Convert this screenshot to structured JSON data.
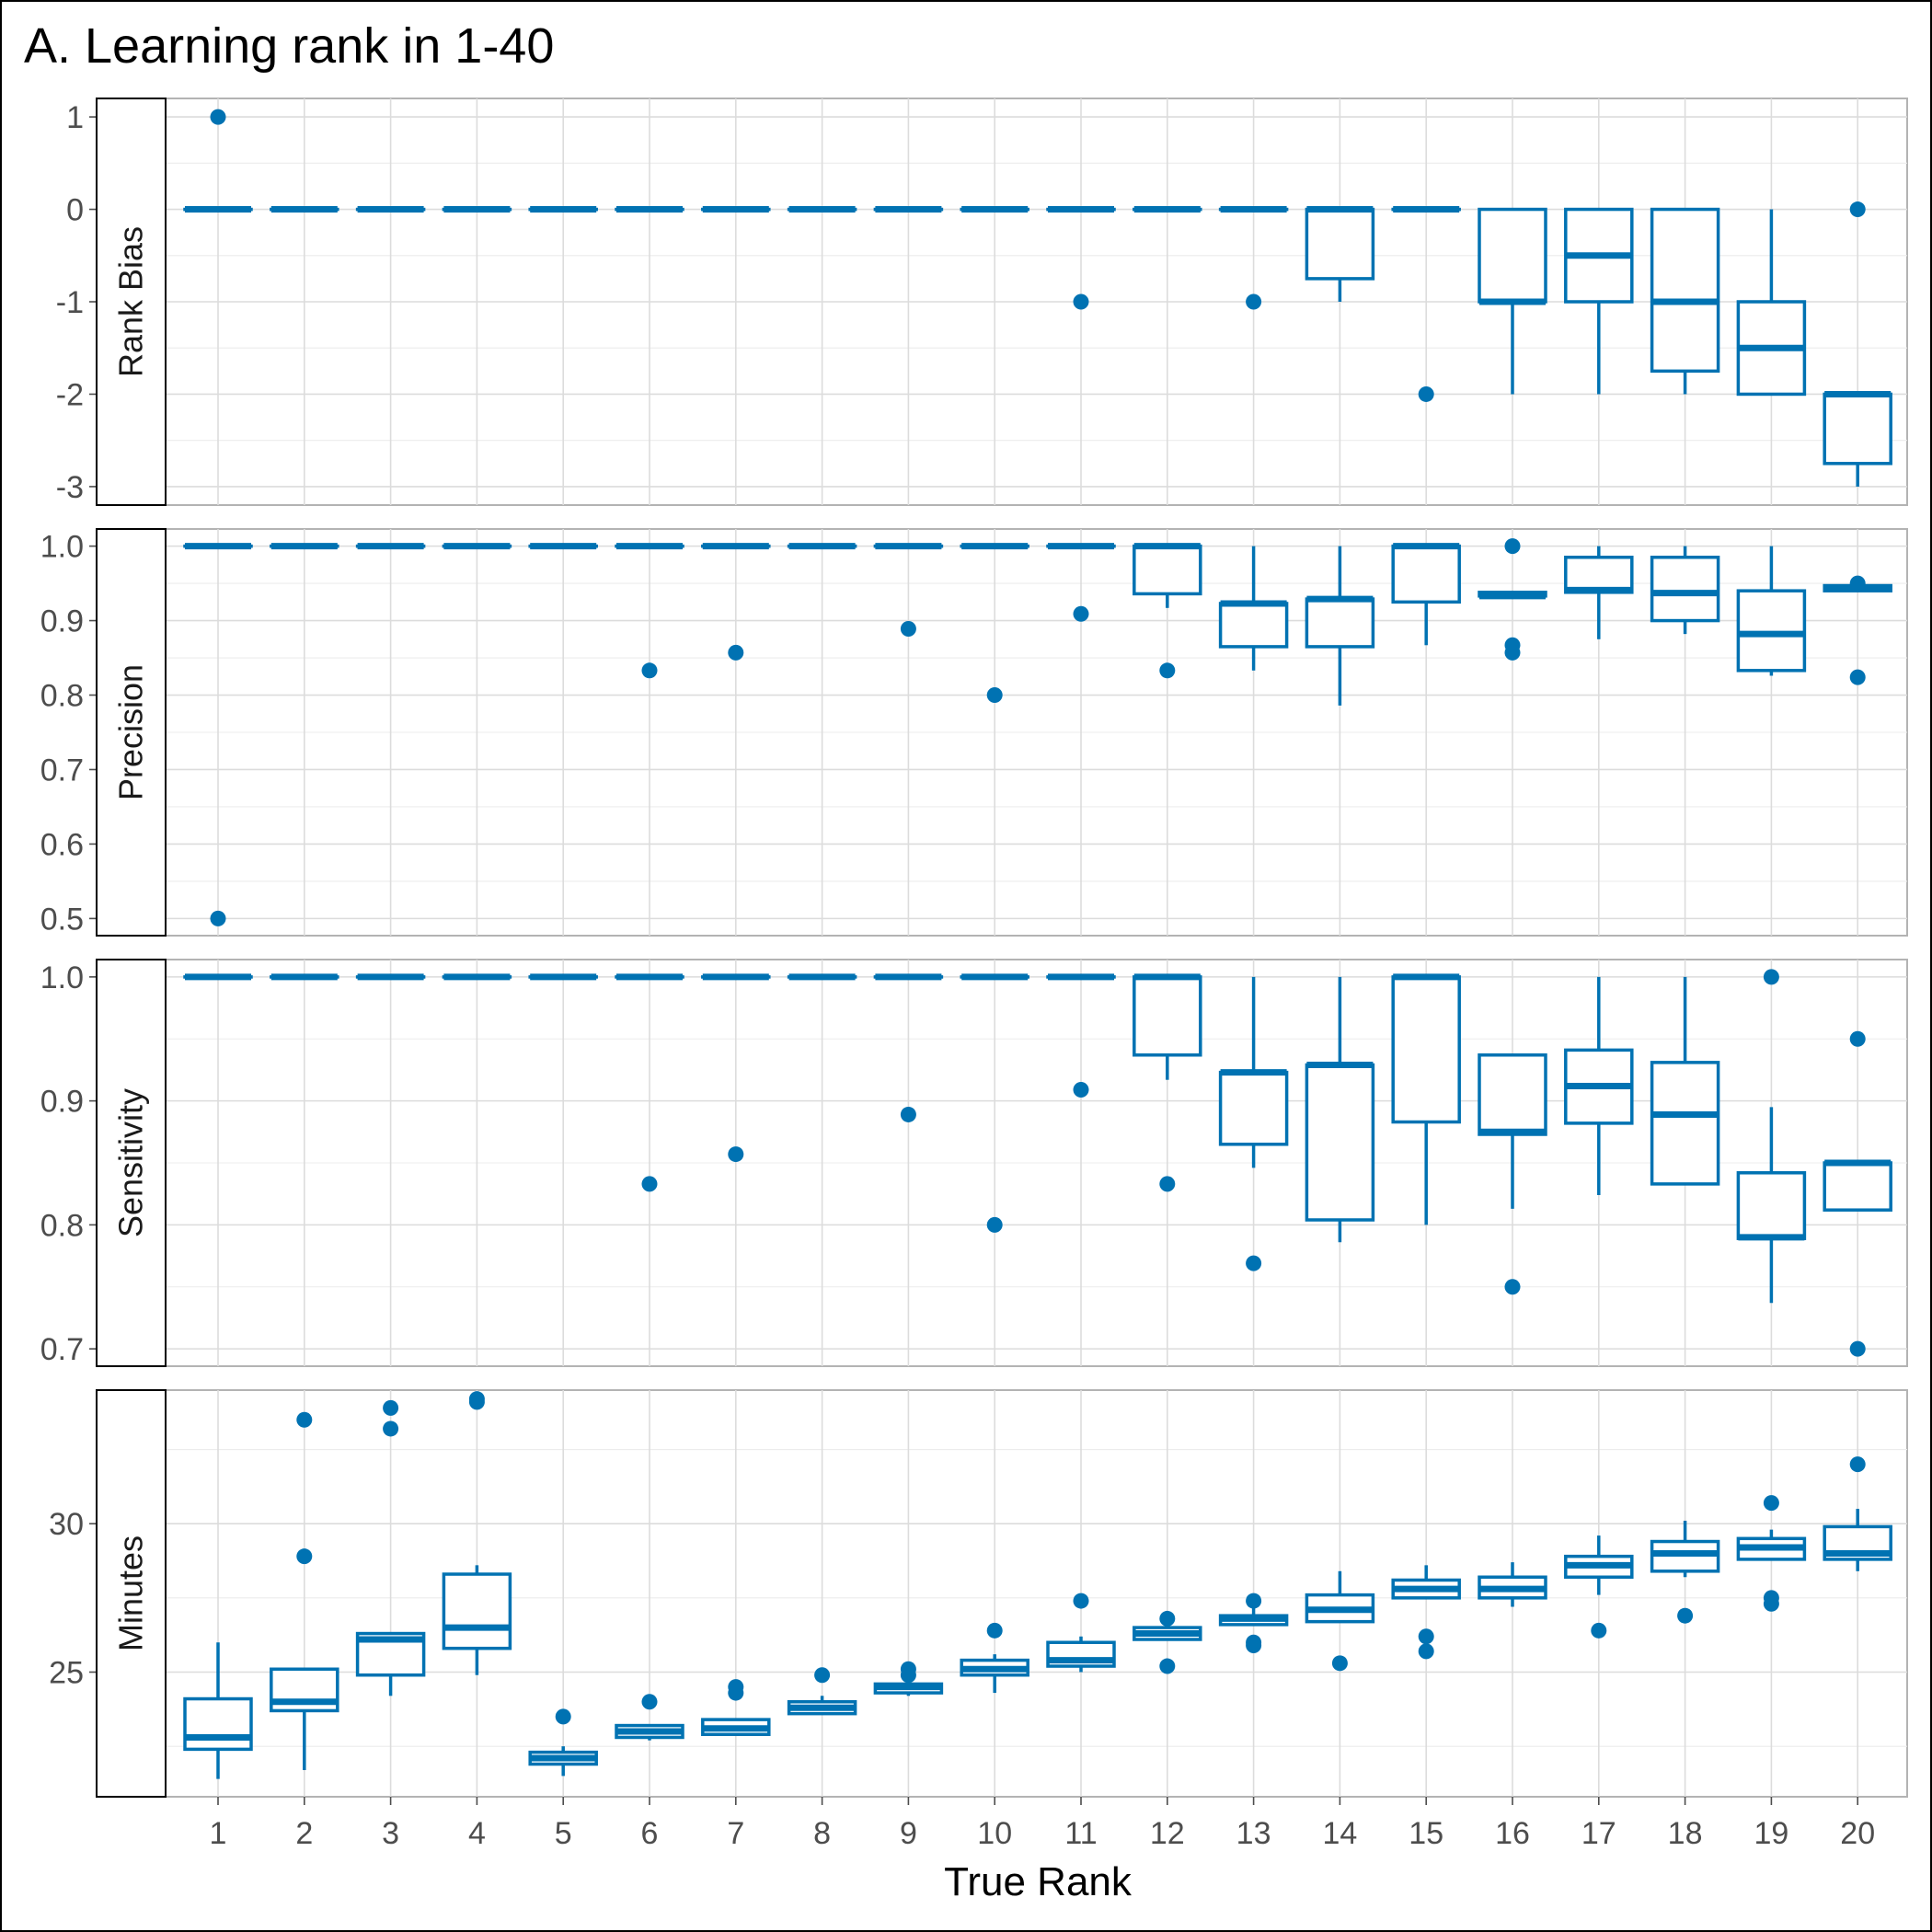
{
  "chart_data": {
    "type": "boxplot",
    "title": "A. Learning rank in 1-40",
    "xlabel": "True Rank",
    "categories": [
      "1",
      "2",
      "3",
      "4",
      "5",
      "6",
      "7",
      "8",
      "9",
      "10",
      "11",
      "12",
      "13",
      "14",
      "15",
      "16",
      "17",
      "18",
      "19",
      "20"
    ],
    "color": "#0072B2",
    "grid": true,
    "panels": [
      {
        "name": "Rank Bias",
        "ylim": [
          -3.2,
          1.2
        ],
        "yticks": [
          1,
          0,
          -1,
          -2,
          -3
        ],
        "yticklabels": [
          "1",
          "0",
          "-1",
          "-2",
          "-3"
        ],
        "boxes": [
          {
            "x": "1",
            "q1": 0,
            "median": 0,
            "q3": 0,
            "lower": 0,
            "upper": 0,
            "outliers": [
              1
            ]
          },
          {
            "x": "2",
            "q1": 0,
            "median": 0,
            "q3": 0,
            "lower": 0,
            "upper": 0,
            "outliers": []
          },
          {
            "x": "3",
            "q1": 0,
            "median": 0,
            "q3": 0,
            "lower": 0,
            "upper": 0,
            "outliers": []
          },
          {
            "x": "4",
            "q1": 0,
            "median": 0,
            "q3": 0,
            "lower": 0,
            "upper": 0,
            "outliers": []
          },
          {
            "x": "5",
            "q1": 0,
            "median": 0,
            "q3": 0,
            "lower": 0,
            "upper": 0,
            "outliers": []
          },
          {
            "x": "6",
            "q1": 0,
            "median": 0,
            "q3": 0,
            "lower": 0,
            "upper": 0,
            "outliers": []
          },
          {
            "x": "7",
            "q1": 0,
            "median": 0,
            "q3": 0,
            "lower": 0,
            "upper": 0,
            "outliers": []
          },
          {
            "x": "8",
            "q1": 0,
            "median": 0,
            "q3": 0,
            "lower": 0,
            "upper": 0,
            "outliers": []
          },
          {
            "x": "9",
            "q1": 0,
            "median": 0,
            "q3": 0,
            "lower": 0,
            "upper": 0,
            "outliers": []
          },
          {
            "x": "10",
            "q1": 0,
            "median": 0,
            "q3": 0,
            "lower": 0,
            "upper": 0,
            "outliers": []
          },
          {
            "x": "11",
            "q1": 0,
            "median": 0,
            "q3": 0,
            "lower": 0,
            "upper": 0,
            "outliers": [
              -1
            ]
          },
          {
            "x": "12",
            "q1": 0,
            "median": 0,
            "q3": 0,
            "lower": 0,
            "upper": 0,
            "outliers": []
          },
          {
            "x": "13",
            "q1": 0,
            "median": 0,
            "q3": 0,
            "lower": 0,
            "upper": 0,
            "outliers": [
              -1
            ]
          },
          {
            "x": "14",
            "q1": -0.75,
            "median": 0,
            "q3": 0,
            "lower": -1,
            "upper": 0,
            "outliers": []
          },
          {
            "x": "15",
            "q1": 0,
            "median": 0,
            "q3": 0,
            "lower": 0,
            "upper": 0,
            "outliers": [
              -2
            ]
          },
          {
            "x": "16",
            "q1": -1,
            "median": -1,
            "q3": 0,
            "lower": -2,
            "upper": 0,
            "outliers": []
          },
          {
            "x": "17",
            "q1": -1,
            "median": -0.5,
            "q3": 0,
            "lower": -2,
            "upper": 0,
            "outliers": []
          },
          {
            "x": "18",
            "q1": -1.75,
            "median": -1,
            "q3": 0,
            "lower": -2,
            "upper": 0,
            "outliers": []
          },
          {
            "x": "19",
            "q1": -2,
            "median": -1.5,
            "q3": -1,
            "lower": -2,
            "upper": 0,
            "outliers": []
          },
          {
            "x": "20",
            "q1": -2.75,
            "median": -2,
            "q3": -2,
            "lower": -3,
            "upper": -2,
            "outliers": [
              0
            ]
          }
        ]
      },
      {
        "name": "Precision",
        "ylim": [
          0.477,
          1.023
        ],
        "yticks": [
          1.0,
          0.9,
          0.8,
          0.7,
          0.6,
          0.5
        ],
        "yticklabels": [
          "1.0",
          "0.9",
          "0.8",
          "0.7",
          "0.6",
          "0.5"
        ],
        "boxes": [
          {
            "x": "1",
            "q1": 1,
            "median": 1,
            "q3": 1,
            "lower": 1,
            "upper": 1,
            "outliers": [
              0.5
            ]
          },
          {
            "x": "2",
            "q1": 1,
            "median": 1,
            "q3": 1,
            "lower": 1,
            "upper": 1,
            "outliers": []
          },
          {
            "x": "3",
            "q1": 1,
            "median": 1,
            "q3": 1,
            "lower": 1,
            "upper": 1,
            "outliers": []
          },
          {
            "x": "4",
            "q1": 1,
            "median": 1,
            "q3": 1,
            "lower": 1,
            "upper": 1,
            "outliers": []
          },
          {
            "x": "5",
            "q1": 1,
            "median": 1,
            "q3": 1,
            "lower": 1,
            "upper": 1,
            "outliers": []
          },
          {
            "x": "6",
            "q1": 1,
            "median": 1,
            "q3": 1,
            "lower": 1,
            "upper": 1,
            "outliers": [
              0.833
            ]
          },
          {
            "x": "7",
            "q1": 1,
            "median": 1,
            "q3": 1,
            "lower": 1,
            "upper": 1,
            "outliers": [
              0.857
            ]
          },
          {
            "x": "8",
            "q1": 1,
            "median": 1,
            "q3": 1,
            "lower": 1,
            "upper": 1,
            "outliers": []
          },
          {
            "x": "9",
            "q1": 1,
            "median": 1,
            "q3": 1,
            "lower": 1,
            "upper": 1,
            "outliers": [
              0.889
            ]
          },
          {
            "x": "10",
            "q1": 1,
            "median": 1,
            "q3": 1,
            "lower": 1,
            "upper": 1,
            "outliers": [
              0.8
            ]
          },
          {
            "x": "11",
            "q1": 1,
            "median": 1,
            "q3": 1,
            "lower": 1,
            "upper": 1,
            "outliers": [
              0.909
            ]
          },
          {
            "x": "12",
            "q1": 0.936,
            "median": 1,
            "q3": 1,
            "lower": 0.917,
            "upper": 1,
            "outliers": [
              0.833
            ]
          },
          {
            "x": "13",
            "q1": 0.865,
            "median": 0.923,
            "q3": 0.923,
            "lower": 0.833,
            "upper": 1,
            "outliers": []
          },
          {
            "x": "14",
            "q1": 0.865,
            "median": 0.929,
            "q3": 0.929,
            "lower": 0.786,
            "upper": 1,
            "outliers": []
          },
          {
            "x": "15",
            "q1": 0.925,
            "median": 1,
            "q3": 1,
            "lower": 0.867,
            "upper": 1,
            "outliers": []
          },
          {
            "x": "16",
            "q1": 0.933,
            "median": 0.933,
            "q3": 0.938,
            "lower": 0.933,
            "upper": 0.938,
            "outliers": [
              1.0,
              0.867,
              0.857
            ]
          },
          {
            "x": "17",
            "q1": 0.938,
            "median": 0.941,
            "q3": 0.985,
            "lower": 0.875,
            "upper": 1,
            "outliers": []
          },
          {
            "x": "18",
            "q1": 0.9,
            "median": 0.937,
            "q3": 0.985,
            "lower": 0.882,
            "upper": 1,
            "outliers": []
          },
          {
            "x": "19",
            "q1": 0.833,
            "median": 0.882,
            "q3": 0.94,
            "lower": 0.826,
            "upper": 1,
            "outliers": []
          },
          {
            "x": "20",
            "q1": 0.94,
            "median": 0.943,
            "q3": 0.947,
            "lower": 0.94,
            "upper": 0.947,
            "outliers": [
              0.95,
              0.824
            ]
          }
        ]
      },
      {
        "name": "Sensitivity",
        "ylim": [
          0.686,
          1.014
        ],
        "yticks": [
          1.0,
          0.9,
          0.8,
          0.7
        ],
        "yticklabels": [
          "1.0",
          "0.9",
          "0.8",
          "0.7"
        ],
        "boxes": [
          {
            "x": "1",
            "q1": 1,
            "median": 1,
            "q3": 1,
            "lower": 1,
            "upper": 1,
            "outliers": []
          },
          {
            "x": "2",
            "q1": 1,
            "median": 1,
            "q3": 1,
            "lower": 1,
            "upper": 1,
            "outliers": []
          },
          {
            "x": "3",
            "q1": 1,
            "median": 1,
            "q3": 1,
            "lower": 1,
            "upper": 1,
            "outliers": []
          },
          {
            "x": "4",
            "q1": 1,
            "median": 1,
            "q3": 1,
            "lower": 1,
            "upper": 1,
            "outliers": []
          },
          {
            "x": "5",
            "q1": 1,
            "median": 1,
            "q3": 1,
            "lower": 1,
            "upper": 1,
            "outliers": []
          },
          {
            "x": "6",
            "q1": 1,
            "median": 1,
            "q3": 1,
            "lower": 1,
            "upper": 1,
            "outliers": [
              0.833
            ]
          },
          {
            "x": "7",
            "q1": 1,
            "median": 1,
            "q3": 1,
            "lower": 1,
            "upper": 1,
            "outliers": [
              0.857
            ]
          },
          {
            "x": "8",
            "q1": 1,
            "median": 1,
            "q3": 1,
            "lower": 1,
            "upper": 1,
            "outliers": []
          },
          {
            "x": "9",
            "q1": 1,
            "median": 1,
            "q3": 1,
            "lower": 1,
            "upper": 1,
            "outliers": [
              0.889
            ]
          },
          {
            "x": "10",
            "q1": 1,
            "median": 1,
            "q3": 1,
            "lower": 1,
            "upper": 1,
            "outliers": [
              0.8
            ]
          },
          {
            "x": "11",
            "q1": 1,
            "median": 1,
            "q3": 1,
            "lower": 1,
            "upper": 1,
            "outliers": [
              0.909
            ]
          },
          {
            "x": "12",
            "q1": 0.937,
            "median": 1,
            "q3": 1,
            "lower": 0.917,
            "upper": 1,
            "outliers": [
              0.833
            ]
          },
          {
            "x": "13",
            "q1": 0.865,
            "median": 0.923,
            "q3": 0.923,
            "lower": 0.846,
            "upper": 1,
            "outliers": [
              0.769
            ]
          },
          {
            "x": "14",
            "q1": 0.804,
            "median": 0.929,
            "q3": 0.929,
            "lower": 0.786,
            "upper": 1,
            "outliers": []
          },
          {
            "x": "15",
            "q1": 0.883,
            "median": 1,
            "q3": 1,
            "lower": 0.8,
            "upper": 1,
            "outliers": []
          },
          {
            "x": "16",
            "q1": 0.873,
            "median": 0.875,
            "q3": 0.937,
            "lower": 0.813,
            "upper": 0.937,
            "outliers": [
              0.75
            ]
          },
          {
            "x": "17",
            "q1": 0.882,
            "median": 0.912,
            "q3": 0.941,
            "lower": 0.824,
            "upper": 1,
            "outliers": []
          },
          {
            "x": "18",
            "q1": 0.833,
            "median": 0.889,
            "q3": 0.931,
            "lower": 0.833,
            "upper": 1,
            "outliers": []
          },
          {
            "x": "19",
            "q1": 0.789,
            "median": 0.79,
            "q3": 0.842,
            "lower": 0.737,
            "upper": 0.895,
            "outliers": [
              1.0
            ]
          },
          {
            "x": "20",
            "q1": 0.812,
            "median": 0.85,
            "q3": 0.85,
            "lower": 0.812,
            "upper": 0.85,
            "outliers": [
              0.95,
              0.7
            ]
          }
        ]
      },
      {
        "name": "Minutes",
        "ylim": [
          20.8,
          34.5
        ],
        "yticks": [
          30,
          25
        ],
        "yticklabels": [
          "30",
          "25"
        ],
        "boxes": [
          {
            "x": "1",
            "q1": 22.4,
            "median": 22.8,
            "q3": 24.1,
            "lower": 21.4,
            "upper": 26.0,
            "outliers": []
          },
          {
            "x": "2",
            "q1": 23.7,
            "median": 24.0,
            "q3": 25.1,
            "lower": 21.7,
            "upper": 25.1,
            "outliers": [
              33.5,
              28.9
            ]
          },
          {
            "x": "3",
            "q1": 24.9,
            "median": 26.1,
            "q3": 26.3,
            "lower": 24.2,
            "upper": 26.3,
            "outliers": [
              33.9,
              33.2
            ]
          },
          {
            "x": "4",
            "q1": 25.8,
            "median": 26.5,
            "q3": 28.3,
            "lower": 24.9,
            "upper": 28.6,
            "outliers": [
              34.2,
              34.1
            ]
          },
          {
            "x": "5",
            "q1": 21.9,
            "median": 22.1,
            "q3": 22.3,
            "lower": 21.5,
            "upper": 22.5,
            "outliers": [
              23.5
            ]
          },
          {
            "x": "6",
            "q1": 22.8,
            "median": 23.0,
            "q3": 23.2,
            "lower": 22.7,
            "upper": 23.2,
            "outliers": [
              24.0
            ]
          },
          {
            "x": "7",
            "q1": 22.9,
            "median": 23.1,
            "q3": 23.4,
            "lower": 22.9,
            "upper": 23.4,
            "outliers": [
              24.5,
              24.3
            ]
          },
          {
            "x": "8",
            "q1": 23.6,
            "median": 23.8,
            "q3": 24.0,
            "lower": 23.6,
            "upper": 24.2,
            "outliers": [
              24.9
            ]
          },
          {
            "x": "9",
            "q1": 24.3,
            "median": 24.5,
            "q3": 24.6,
            "lower": 24.2,
            "upper": 24.6,
            "outliers": [
              25.1,
              24.9
            ]
          },
          {
            "x": "10",
            "q1": 24.9,
            "median": 25.1,
            "q3": 25.4,
            "lower": 24.3,
            "upper": 25.6,
            "outliers": [
              26.4
            ]
          },
          {
            "x": "11",
            "q1": 25.2,
            "median": 25.4,
            "q3": 26.0,
            "lower": 25.0,
            "upper": 26.2,
            "outliers": [
              27.4
            ]
          },
          {
            "x": "12",
            "q1": 26.1,
            "median": 26.3,
            "q3": 26.5,
            "lower": 26.1,
            "upper": 26.5,
            "outliers": [
              26.8,
              25.2
            ]
          },
          {
            "x": "13",
            "q1": 26.6,
            "median": 26.8,
            "q3": 26.9,
            "lower": 26.6,
            "upper": 27.4,
            "outliers": [
              27.4,
              26.0,
              25.9
            ]
          },
          {
            "x": "14",
            "q1": 26.7,
            "median": 27.1,
            "q3": 27.6,
            "lower": 26.7,
            "upper": 28.4,
            "outliers": [
              25.3
            ]
          },
          {
            "x": "15",
            "q1": 27.5,
            "median": 27.8,
            "q3": 28.1,
            "lower": 27.5,
            "upper": 28.6,
            "outliers": [
              26.2,
              25.7
            ]
          },
          {
            "x": "16",
            "q1": 27.5,
            "median": 27.8,
            "q3": 28.2,
            "lower": 27.2,
            "upper": 28.7,
            "outliers": []
          },
          {
            "x": "17",
            "q1": 28.2,
            "median": 28.6,
            "q3": 28.9,
            "lower": 27.6,
            "upper": 29.6,
            "outliers": [
              26.4
            ]
          },
          {
            "x": "18",
            "q1": 28.4,
            "median": 29.0,
            "q3": 29.4,
            "lower": 28.2,
            "upper": 30.1,
            "outliers": [
              26.9
            ]
          },
          {
            "x": "19",
            "q1": 28.8,
            "median": 29.2,
            "q3": 29.5,
            "lower": 28.8,
            "upper": 29.8,
            "outliers": [
              30.7,
              27.5,
              27.3
            ]
          },
          {
            "x": "20",
            "q1": 28.8,
            "median": 29.0,
            "q3": 29.9,
            "lower": 28.4,
            "upper": 30.5,
            "outliers": [
              32.0
            ]
          }
        ]
      }
    ]
  }
}
